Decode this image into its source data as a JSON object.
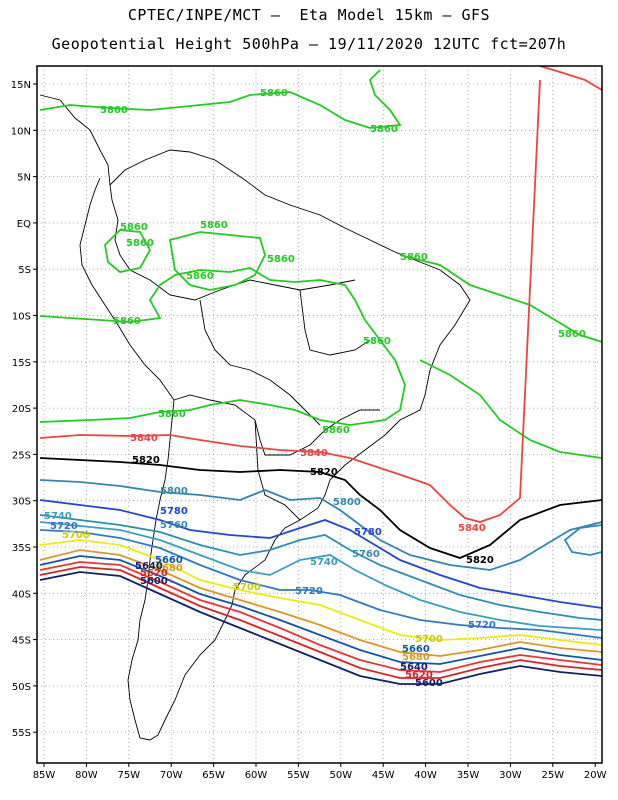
{
  "header": {
    "line1": "CPTEC/INPE/MCT –  Eta Model 15km – GFS",
    "line2": "Geopotential Height 500hPa – 19/11/2020 12UTC fct=207h"
  },
  "axes": {
    "lat_labels": [
      "15N",
      "10N",
      "5N",
      "EQ",
      "5S",
      "10S",
      "15S",
      "20S",
      "25S",
      "30S",
      "35S",
      "40S",
      "45S",
      "50S",
      "55S"
    ],
    "lon_labels": [
      "85W",
      "80W",
      "75W",
      "70W",
      "65W",
      "60W",
      "55W",
      "50W",
      "45W",
      "40W",
      "35W",
      "30W",
      "25W",
      "20W"
    ]
  },
  "colors": {
    "c5860": "#22cc22",
    "c5840": "#ee4444",
    "c5820": "#000000",
    "c5800": "#3388aa",
    "c5780": "#2244dd",
    "c5760": "#2e8fb0",
    "c5740": "#3aa0c0",
    "c5720": "#3377cc",
    "c5700": "#eeee00",
    "c5680": "#dd9922",
    "c5660": "#1155aa",
    "c5640": "#ee3333",
    "c5620": "#dd2222",
    "c5600": "#112266",
    "coast": "#000000",
    "grid": "#999999"
  },
  "contour_labels": {
    "l5860": "5860",
    "l5840": "5840",
    "l5820": "5820",
    "l5800": "5800",
    "l5780": "5780",
    "l5760": "5760",
    "l5740": "5740",
    "l5720": "5720",
    "l5700": "5700",
    "l5680": "5680",
    "l5660": "5660",
    "l5640": "5640",
    "l5620": "5620",
    "l5600": "5600"
  }
}
